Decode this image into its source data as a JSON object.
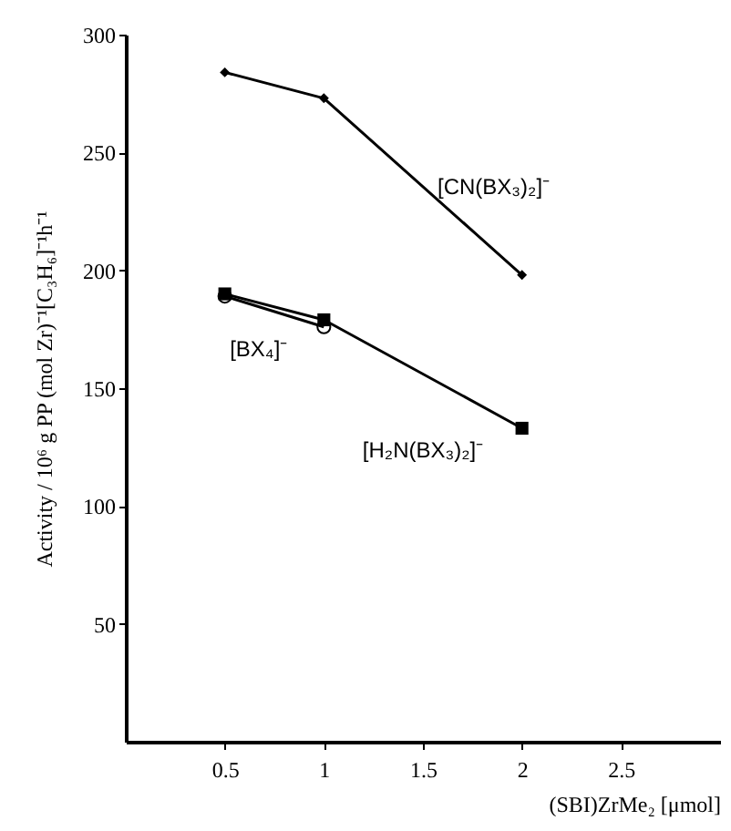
{
  "chart_data": {
    "type": "line",
    "xlabel": "(SBI)ZrMe₂ [μmol]",
    "ylabel": "Activity / 10⁶ g PP (mol Zr)⁻¹[C₃H₆]⁻¹h⁻¹",
    "x": [
      0.5,
      1,
      2
    ],
    "series": [
      {
        "name": "[CN(BX₃)₂]⁻",
        "color": "#000000",
        "marker": "diamond",
        "values": [
          284,
          273,
          198
        ]
      },
      {
        "name": "[BX₄]⁻",
        "color": "#000000",
        "marker": "circle",
        "x": [
          0.5,
          1
        ],
        "values": [
          189,
          176
        ]
      },
      {
        "name": "[H₂N(BX₃)₂]⁻",
        "color": "#000000",
        "marker": "square",
        "values": [
          190,
          179,
          133
        ]
      }
    ],
    "xlim": [
      0,
      3
    ],
    "xticks": [
      0.5,
      1,
      1.5,
      2,
      2.5
    ],
    "ylim": [
      0,
      300
    ],
    "yticks": [
      50,
      100,
      150,
      200,
      250,
      300
    ],
    "grid": false,
    "legend": false,
    "line_style": "solid"
  }
}
